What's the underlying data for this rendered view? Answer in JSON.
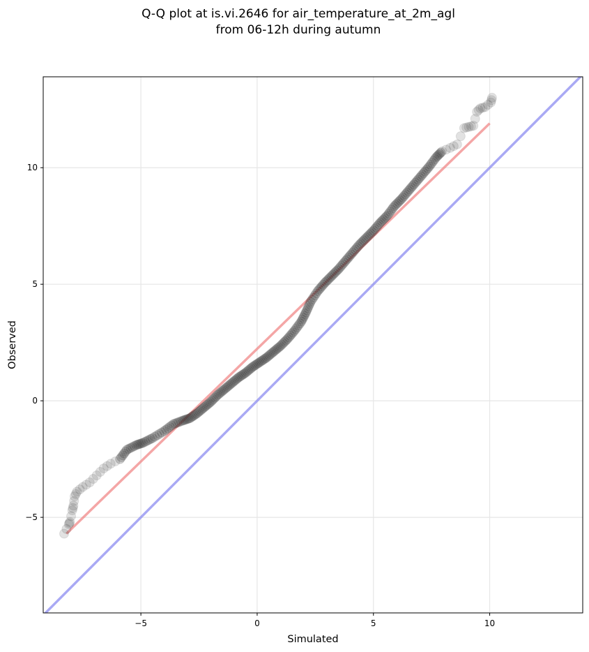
{
  "chart_data": {
    "type": "scatter",
    "title_lines": [
      "Q-Q plot at is.vi.2646 for air_temperature_at_2m_agl",
      "from 06-12h during autumn"
    ],
    "xlabel": "Simulated",
    "ylabel": "Observed",
    "xlim": [
      -9.2,
      14.0
    ],
    "ylim": [
      -9.1,
      13.9
    ],
    "xticks": [
      -5,
      0,
      5,
      10
    ],
    "yticks": [
      -5,
      0,
      5,
      10
    ],
    "tick_labels_x": [
      "−5",
      "0",
      "5",
      "10"
    ],
    "tick_labels_y": [
      "−5",
      "0",
      "5",
      "10"
    ],
    "grid": true,
    "colors": {
      "points": "#333333",
      "fit_line": "#f08080",
      "identity_line": "#8c8cf0"
    },
    "fit_line": {
      "x": [
        -8.2,
        10.0
      ],
      "y": [
        -5.7,
        11.9
      ]
    },
    "identity_line": {
      "x": [
        -9.2,
        14.0
      ],
      "y": [
        -9.2,
        14.0
      ]
    },
    "quantiles": [
      [
        -8.3,
        -5.7
      ],
      [
        -8.1,
        -5.3
      ],
      [
        -8.05,
        -5.2
      ],
      [
        -7.95,
        -4.7
      ],
      [
        -7.9,
        -4.5
      ],
      [
        -7.85,
        -4.1
      ],
      [
        -7.75,
        -3.9
      ],
      [
        -7.5,
        -3.7
      ],
      [
        -7.2,
        -3.5
      ],
      [
        -6.9,
        -3.2
      ],
      [
        -6.6,
        -2.9
      ],
      [
        -6.3,
        -2.7
      ],
      [
        -5.9,
        -2.5
      ],
      [
        -5.6,
        -2.1
      ],
      [
        -5.2,
        -1.9
      ],
      [
        -4.9,
        -1.8
      ],
      [
        -4.5,
        -1.6
      ],
      [
        -4.0,
        -1.3
      ],
      [
        -3.6,
        -1.0
      ],
      [
        -3.2,
        -0.85
      ],
      [
        -2.9,
        -0.75
      ],
      [
        -2.6,
        -0.55
      ],
      [
        -2.3,
        -0.3
      ],
      [
        -2.0,
        -0.05
      ],
      [
        -1.7,
        0.25
      ],
      [
        -1.4,
        0.5
      ],
      [
        -1.1,
        0.75
      ],
      [
        -0.8,
        1.0
      ],
      [
        -0.5,
        1.2
      ],
      [
        -0.2,
        1.45
      ],
      [
        0.1,
        1.65
      ],
      [
        0.4,
        1.85
      ],
      [
        0.7,
        2.1
      ],
      [
        1.0,
        2.35
      ],
      [
        1.3,
        2.65
      ],
      [
        1.6,
        3.0
      ],
      [
        1.9,
        3.4
      ],
      [
        2.1,
        3.8
      ],
      [
        2.3,
        4.25
      ],
      [
        2.6,
        4.7
      ],
      [
        2.9,
        5.05
      ],
      [
        3.2,
        5.35
      ],
      [
        3.5,
        5.65
      ],
      [
        3.8,
        6.0
      ],
      [
        4.1,
        6.35
      ],
      [
        4.4,
        6.7
      ],
      [
        4.7,
        7.0
      ],
      [
        5.0,
        7.3
      ],
      [
        5.3,
        7.65
      ],
      [
        5.6,
        7.95
      ],
      [
        5.9,
        8.35
      ],
      [
        6.2,
        8.65
      ],
      [
        6.5,
        9.0
      ],
      [
        6.8,
        9.35
      ],
      [
        7.1,
        9.7
      ],
      [
        7.4,
        10.05
      ],
      [
        7.7,
        10.45
      ],
      [
        7.95,
        10.7
      ],
      [
        8.3,
        10.85
      ],
      [
        8.6,
        11.0
      ],
      [
        8.9,
        11.7
      ],
      [
        9.1,
        11.75
      ],
      [
        9.3,
        11.8
      ],
      [
        9.45,
        12.4
      ],
      [
        9.6,
        12.55
      ],
      [
        9.8,
        12.6
      ],
      [
        10.05,
        12.8
      ],
      [
        10.1,
        13.0
      ]
    ]
  }
}
